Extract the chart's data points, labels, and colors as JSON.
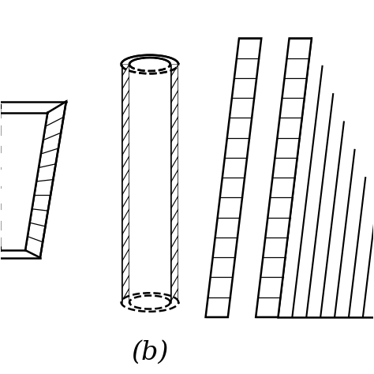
{
  "bg_color": "#ffffff",
  "line_color": "#000000",
  "label_b": "(b)",
  "label_fontsize": 24,
  "fig_width": 4.74,
  "fig_height": 4.74,
  "dpi": 100
}
